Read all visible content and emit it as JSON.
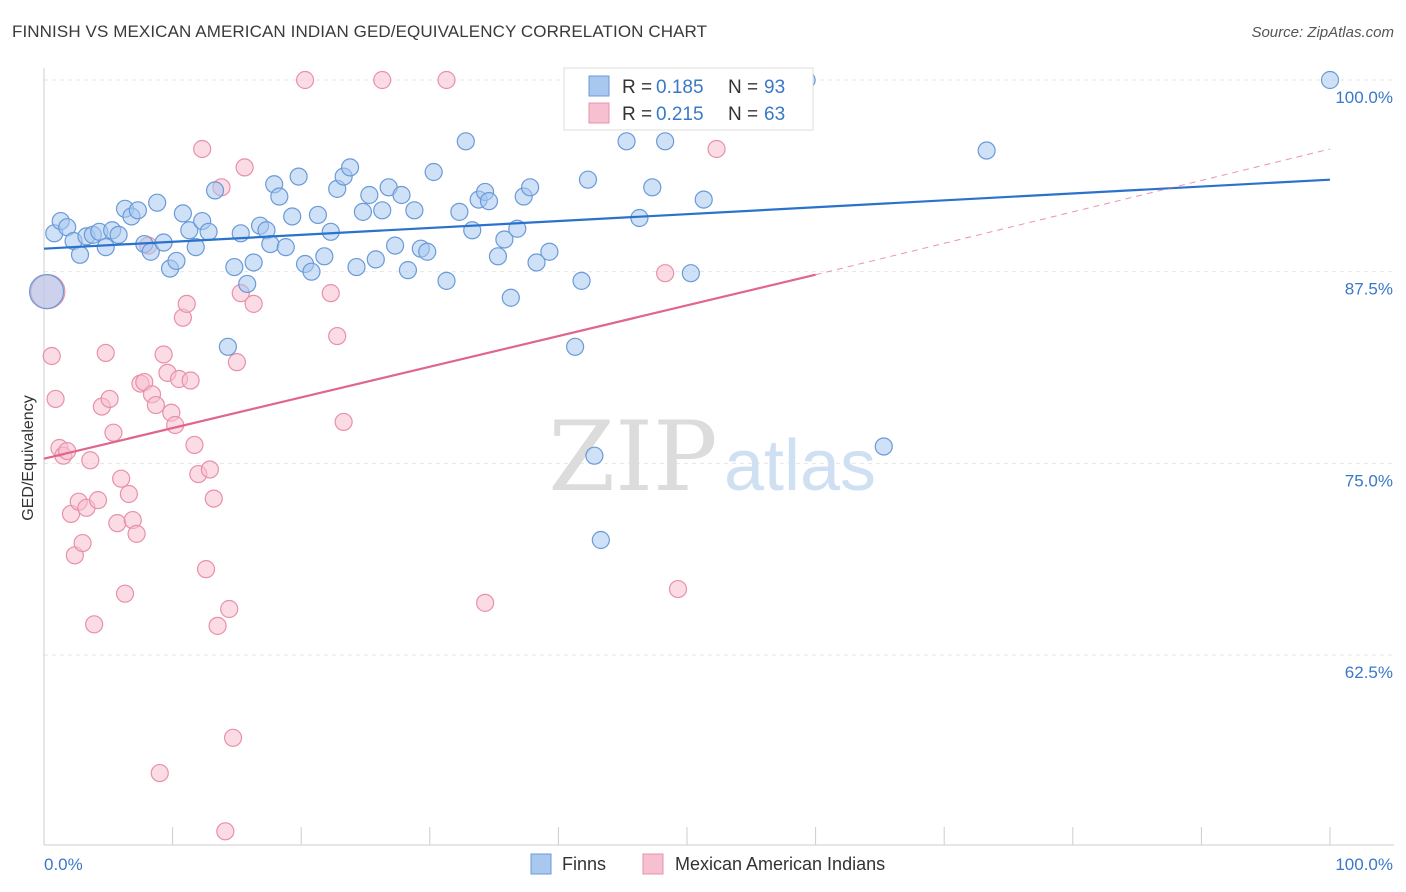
{
  "title": "FINNISH VS MEXICAN AMERICAN INDIAN GED/EQUIVALENCY CORRELATION CHART",
  "source": "Source: ZipAtlas.com",
  "watermark": {
    "zip": "ZIP",
    "atlas": "atlas"
  },
  "colors": {
    "finns_fill": "#a8c8f0",
    "finns_stroke": "#6a9ad8",
    "finns_line": "#2a72cc",
    "mexican_fill": "#f7c0d0",
    "mexican_stroke": "#e890aa",
    "mexican_line": "#e0668e",
    "axis_label": "#3a78c8",
    "grid": "#e6e6e6"
  },
  "legend": {
    "rows": [
      {
        "r_label": "R = ",
        "r_value": "0.185",
        "n_label": "N = ",
        "n_value": "93"
      },
      {
        "r_label": "R = ",
        "r_value": "0.215",
        "n_label": "N = ",
        "n_value": "63"
      }
    ]
  },
  "chart_data": {
    "type": "scatter",
    "title": "FINNISH VS MEXICAN AMERICAN INDIAN GED/EQUIVALENCY CORRELATION CHART",
    "xlabel": "",
    "ylabel": "GED/Equivalency",
    "xlim": [
      0,
      100
    ],
    "ylim": [
      50.5,
      101.5
    ],
    "x_tick_labels": [
      "0.0%",
      "100.0%"
    ],
    "y_ticks": [
      62.5,
      75.0,
      87.5,
      100.0
    ],
    "y_tick_labels": [
      "62.5%",
      "75.0%",
      "87.5%",
      "100.0%"
    ],
    "grid": true,
    "legend_position": "top-center",
    "series": [
      {
        "name": "Finns",
        "r": 0.185,
        "n": 93,
        "trend": {
          "x": [
            0,
            100
          ],
          "y": [
            89.0,
            93.5
          ]
        },
        "points": [
          [
            0.2,
            86.2
          ],
          [
            0.8,
            90.0
          ],
          [
            1.3,
            90.8
          ],
          [
            1.8,
            90.4
          ],
          [
            2.3,
            89.5
          ],
          [
            2.8,
            88.6
          ],
          [
            3.3,
            89.8
          ],
          [
            3.8,
            89.9
          ],
          [
            4.3,
            90.1
          ],
          [
            4.8,
            89.1
          ],
          [
            5.3,
            90.2
          ],
          [
            5.8,
            89.9
          ],
          [
            6.3,
            91.6
          ],
          [
            6.8,
            91.1
          ],
          [
            7.3,
            91.5
          ],
          [
            7.8,
            89.3
          ],
          [
            8.3,
            88.8
          ],
          [
            8.8,
            92.0
          ],
          [
            9.3,
            89.4
          ],
          [
            9.8,
            87.7
          ],
          [
            10.3,
            88.2
          ],
          [
            10.8,
            91.3
          ],
          [
            11.3,
            90.2
          ],
          [
            11.8,
            89.1
          ],
          [
            12.3,
            90.8
          ],
          [
            12.8,
            90.1
          ],
          [
            13.3,
            92.8
          ],
          [
            14.3,
            82.6
          ],
          [
            14.8,
            87.8
          ],
          [
            15.3,
            90.0
          ],
          [
            15.8,
            86.7
          ],
          [
            16.3,
            88.1
          ],
          [
            16.8,
            90.5
          ],
          [
            17.3,
            90.2
          ],
          [
            17.6,
            89.3
          ],
          [
            17.9,
            93.2
          ],
          [
            18.3,
            92.4
          ],
          [
            18.8,
            89.1
          ],
          [
            19.3,
            91.1
          ],
          [
            19.8,
            93.7
          ],
          [
            20.3,
            88.0
          ],
          [
            20.8,
            87.5
          ],
          [
            21.3,
            91.2
          ],
          [
            21.8,
            88.5
          ],
          [
            22.3,
            90.1
          ],
          [
            22.8,
            92.9
          ],
          [
            23.3,
            93.7
          ],
          [
            23.8,
            94.3
          ],
          [
            24.3,
            87.8
          ],
          [
            24.8,
            91.4
          ],
          [
            25.3,
            92.5
          ],
          [
            25.8,
            88.3
          ],
          [
            26.3,
            91.5
          ],
          [
            26.8,
            93.0
          ],
          [
            27.3,
            89.2
          ],
          [
            27.8,
            92.5
          ],
          [
            28.3,
            87.6
          ],
          [
            28.8,
            91.5
          ],
          [
            29.3,
            89.0
          ],
          [
            29.8,
            88.8
          ],
          [
            30.3,
            94.0
          ],
          [
            31.3,
            86.9
          ],
          [
            32.3,
            91.4
          ],
          [
            32.8,
            96.0
          ],
          [
            33.3,
            90.2
          ],
          [
            33.8,
            92.2
          ],
          [
            34.3,
            92.7
          ],
          [
            34.6,
            92.1
          ],
          [
            35.3,
            88.5
          ],
          [
            35.8,
            89.6
          ],
          [
            36.3,
            85.8
          ],
          [
            36.8,
            90.3
          ],
          [
            37.3,
            92.4
          ],
          [
            37.8,
            93.0
          ],
          [
            38.3,
            88.1
          ],
          [
            39.3,
            88.8
          ],
          [
            41.3,
            82.6
          ],
          [
            41.8,
            86.9
          ],
          [
            42.3,
            93.5
          ],
          [
            42.8,
            75.5
          ],
          [
            43.3,
            70.0
          ],
          [
            44.3,
            98.5
          ],
          [
            45.3,
            96.0
          ],
          [
            46.3,
            91.0
          ],
          [
            47.3,
            93.0
          ],
          [
            48.3,
            96.0
          ],
          [
            49.3,
            100.0
          ],
          [
            50.3,
            87.4
          ],
          [
            51.3,
            92.2
          ],
          [
            59.3,
            100.0
          ],
          [
            65.3,
            76.1
          ],
          [
            73.3,
            95.4
          ],
          [
            100.0,
            100.0
          ]
        ]
      },
      {
        "name": "Mexican American Indians",
        "r": 0.215,
        "n": 63,
        "trend": {
          "x": [
            0,
            60
          ],
          "y": [
            75.3,
            87.3
          ]
        },
        "trend_extension": {
          "x": [
            60,
            100
          ],
          "y": [
            87.3,
            95.5
          ]
        },
        "points": [
          [
            0.3,
            86.2
          ],
          [
            0.6,
            82.0
          ],
          [
            0.9,
            79.2
          ],
          [
            1.2,
            76.0
          ],
          [
            1.5,
            75.5
          ],
          [
            1.8,
            75.8
          ],
          [
            2.1,
            71.7
          ],
          [
            2.4,
            69.0
          ],
          [
            2.7,
            72.5
          ],
          [
            3.0,
            69.8
          ],
          [
            3.3,
            72.1
          ],
          [
            3.6,
            75.2
          ],
          [
            3.9,
            64.5
          ],
          [
            4.2,
            72.6
          ],
          [
            4.5,
            78.7
          ],
          [
            4.8,
            82.2
          ],
          [
            5.1,
            79.2
          ],
          [
            5.4,
            77.0
          ],
          [
            5.7,
            71.1
          ],
          [
            6.0,
            74.0
          ],
          [
            6.3,
            66.5
          ],
          [
            6.6,
            73.0
          ],
          [
            6.9,
            71.3
          ],
          [
            7.2,
            70.4
          ],
          [
            7.5,
            80.2
          ],
          [
            7.8,
            80.3
          ],
          [
            8.1,
            89.2
          ],
          [
            8.4,
            79.5
          ],
          [
            8.7,
            78.8
          ],
          [
            9.0,
            54.8
          ],
          [
            9.3,
            82.1
          ],
          [
            9.6,
            80.9
          ],
          [
            9.9,
            78.3
          ],
          [
            10.2,
            77.5
          ],
          [
            10.5,
            80.5
          ],
          [
            10.8,
            84.5
          ],
          [
            11.1,
            85.4
          ],
          [
            11.4,
            80.4
          ],
          [
            11.7,
            76.2
          ],
          [
            12.0,
            74.3
          ],
          [
            12.3,
            95.5
          ],
          [
            12.6,
            68.1
          ],
          [
            12.9,
            74.6
          ],
          [
            13.2,
            72.7
          ],
          [
            13.5,
            64.4
          ],
          [
            13.8,
            93.0
          ],
          [
            14.1,
            51.0
          ],
          [
            14.4,
            65.5
          ],
          [
            14.7,
            57.1
          ],
          [
            15.0,
            81.6
          ],
          [
            15.3,
            86.1
          ],
          [
            15.6,
            94.3
          ],
          [
            16.3,
            85.4
          ],
          [
            20.3,
            100.0
          ],
          [
            22.3,
            86.1
          ],
          [
            22.8,
            83.3
          ],
          [
            23.3,
            77.7
          ],
          [
            26.3,
            100.0
          ],
          [
            31.3,
            100.0
          ],
          [
            34.3,
            65.9
          ],
          [
            48.3,
            87.4
          ],
          [
            49.3,
            66.8
          ],
          [
            52.3,
            95.5
          ]
        ]
      }
    ]
  }
}
